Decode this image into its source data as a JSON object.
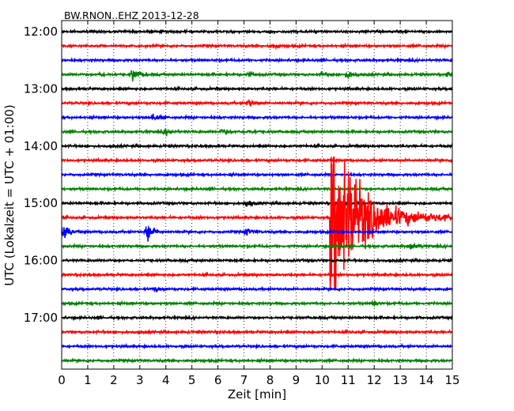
{
  "chart_data": {
    "type": "line",
    "title": "BW.RNON..EHZ 2013-12-28",
    "xlabel": "Zeit  [min]",
    "ylabel": "UTC (Lokalzeit = UTC + 01:00)",
    "xlim": [
      0,
      15
    ],
    "x_ticks": [
      "0",
      "1",
      "2",
      "3",
      "4",
      "5",
      "6",
      "7",
      "8",
      "9",
      "10",
      "11",
      "12",
      "13",
      "14",
      "15"
    ],
    "y_ticks": [
      "12:00",
      "13:00",
      "14:00",
      "15:00",
      "16:00",
      "17:00"
    ],
    "grid": true,
    "trace_start": "12:00",
    "trace_interval_min": 15,
    "trace_count": 24,
    "trace_colors": [
      "#000000",
      "#ff0000",
      "#0000ff",
      "#008000"
    ],
    "events": [
      {
        "trace": 1,
        "minute": 8.0,
        "amplitude": 0.25
      },
      {
        "trace": 3,
        "minute": 1.5,
        "amplitude": 0.15
      },
      {
        "trace": 3,
        "minute": 2.75,
        "amplitude": 0.7
      },
      {
        "trace": 3,
        "minute": 7.2,
        "amplitude": 0.3
      },
      {
        "trace": 3,
        "minute": 10.0,
        "amplitude": 0.25
      },
      {
        "trace": 3,
        "minute": 11.0,
        "amplitude": 0.35
      },
      {
        "trace": 3,
        "minute": 14.8,
        "amplitude": 0.3
      },
      {
        "trace": 5,
        "minute": 7.2,
        "amplitude": 0.4
      },
      {
        "trace": 6,
        "minute": 3.5,
        "amplitude": 0.45
      },
      {
        "trace": 7,
        "minute": 4.0,
        "amplitude": 0.3
      },
      {
        "trace": 7,
        "minute": 6.2,
        "amplitude": 0.3
      },
      {
        "trace": 7,
        "minute": 7.1,
        "amplitude": 0.2
      },
      {
        "trace": 12,
        "minute": 7.1,
        "amplitude": 0.35
      },
      {
        "trace": 13,
        "minute": 10.3,
        "amplitude": 5.5,
        "type": "earthquake"
      },
      {
        "trace": 14,
        "minute": 0.1,
        "amplitude": 0.8
      },
      {
        "trace": 14,
        "minute": 3.3,
        "amplitude": 1.0
      },
      {
        "trace": 14,
        "minute": 7.1,
        "amplitude": 0.4
      },
      {
        "trace": 15,
        "minute": 13.4,
        "amplitude": 0.4
      },
      {
        "trace": 18,
        "minute": 3.6,
        "amplitude": 0.2
      },
      {
        "trace": 19,
        "minute": 12.0,
        "amplitude": 0.25
      }
    ]
  }
}
